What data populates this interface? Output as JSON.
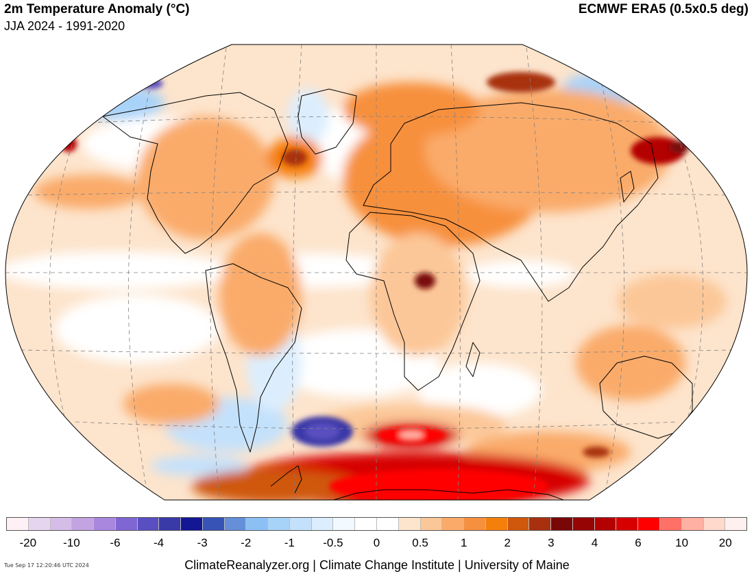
{
  "header": {
    "title": "2m Temperature Anomaly (°C)",
    "subtitle": "JJA 2024 - 1991-2020",
    "source": "ECMWF ERA5 (0.5x0.5 deg)"
  },
  "map": {
    "projection": "Winkel Tripel",
    "colors": {
      "ocean_background": "#ffffff",
      "coastline": "#000000",
      "graticule": "#808080",
      "warm_light": "#fde0c5",
      "warm_medium": "#f8a75a",
      "warm_strong": "#e07020",
      "hot": "#b01010",
      "hottest": "#ff0000",
      "cool_light": "#c6e0fa",
      "cool_strong": "#4040b0"
    }
  },
  "legend": {
    "colors": [
      "#fff0f5",
      "#e6d5ee",
      "#d6bde8",
      "#c4a3e2",
      "#a987df",
      "#8066d2",
      "#5a4fc0",
      "#3a39a8",
      "#131793",
      "#3753b5",
      "#658fd8",
      "#8cc0f5",
      "#a8d3f9",
      "#c4e1fb",
      "#dceefe",
      "#f2f9ff",
      "#ffffff",
      "#ffffff",
      "#fde4cc",
      "#fcc798",
      "#faab6a",
      "#f7903e",
      "#f57f0b",
      "#cf580c",
      "#a8300f",
      "#7a0707",
      "#960404",
      "#b30101",
      "#d60000",
      "#ff0000",
      "#ff7066",
      "#ffb0a2",
      "#ffd9cc",
      "#fff0f0"
    ],
    "tick_labels": [
      "-20",
      "-10",
      "-6",
      "-4",
      "-3",
      "-2",
      "-1",
      "-0.5",
      "0",
      "0.5",
      "1",
      "2",
      "3",
      "4",
      "6",
      "10",
      "20"
    ]
  },
  "footer": {
    "credit": "ClimateReanalyzer.org | Climate Change Institute | University of Maine",
    "timestamp": "Tue Sep 17 12:20:46 UTC 2024"
  }
}
